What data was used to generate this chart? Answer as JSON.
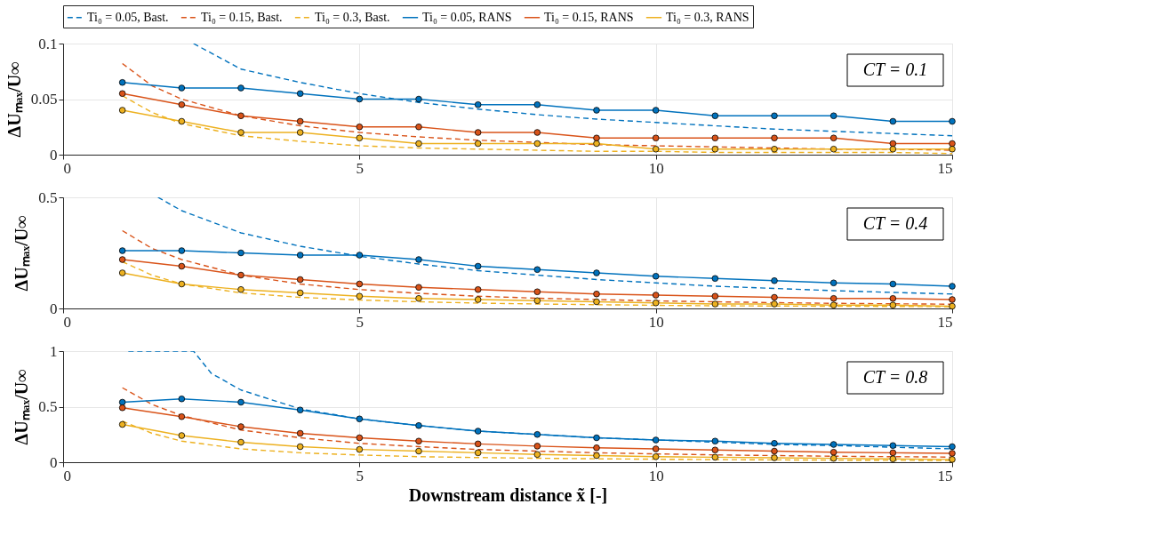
{
  "chart_data": [
    {
      "type": "line",
      "ylabel": "ΔUₘₐₓ/U∞",
      "xlim": [
        0,
        15
      ],
      "xticks": [
        0,
        5,
        10,
        15
      ],
      "ylim": [
        0,
        0.1
      ],
      "yticks": [
        0,
        0.05,
        0.1
      ],
      "grid": true,
      "legend": "top",
      "annotations": [
        "CT = 0.1"
      ],
      "series": [
        {
          "name": "Ti₀ = 0.05, Bast.",
          "color": "#0072bd",
          "line_style": "dashed",
          "marker": "none",
          "x": [
            2.2,
            3,
            4,
            5,
            6,
            7,
            8,
            9,
            10,
            11,
            12,
            13,
            14,
            15
          ],
          "values": [
            0.1,
            0.077,
            0.065,
            0.055,
            0.047,
            0.041,
            0.036,
            0.032,
            0.029,
            0.026,
            0.023,
            0.021,
            0.019,
            0.017
          ]
        },
        {
          "name": "Ti₀ = 0.15, Bast.",
          "color": "#d95319",
          "line_style": "dashed",
          "marker": "none",
          "x": [
            1,
            1.5,
            2,
            3,
            4,
            5,
            6,
            7,
            8,
            9,
            10,
            11,
            12,
            13,
            14,
            15
          ],
          "values": [
            0.082,
            0.062,
            0.05,
            0.035,
            0.026,
            0.02,
            0.016,
            0.013,
            0.011,
            0.009,
            0.008,
            0.007,
            0.006,
            0.005,
            0.005,
            0.004
          ]
        },
        {
          "name": "Ti₀ = 0.3, Bast.",
          "color": "#edb120",
          "line_style": "dashed",
          "marker": "none",
          "x": [
            1,
            1.5,
            2,
            3,
            4,
            5,
            6,
            7,
            8,
            9,
            10,
            11,
            12,
            13,
            14,
            15
          ],
          "values": [
            0.053,
            0.038,
            0.028,
            0.017,
            0.012,
            0.008,
            0.006,
            0.005,
            0.004,
            0.003,
            0.003,
            0.002,
            0.002,
            0.002,
            0.002,
            0.001
          ]
        },
        {
          "name": "Ti₀ = 0.05, RANS",
          "color": "#0072bd",
          "line_style": "solid",
          "marker": "circle",
          "x": [
            1,
            2,
            3,
            4,
            5,
            6,
            7,
            8,
            9,
            10,
            11,
            12,
            13,
            14,
            15
          ],
          "values": [
            0.065,
            0.06,
            0.06,
            0.055,
            0.05,
            0.05,
            0.045,
            0.045,
            0.04,
            0.04,
            0.035,
            0.035,
            0.035,
            0.03,
            0.03
          ]
        },
        {
          "name": "Ti₀ = 0.15, RANS",
          "color": "#d95319",
          "line_style": "solid",
          "marker": "circle",
          "x": [
            1,
            2,
            3,
            4,
            5,
            6,
            7,
            8,
            9,
            10,
            11,
            12,
            13,
            14,
            15
          ],
          "values": [
            0.055,
            0.045,
            0.035,
            0.03,
            0.025,
            0.025,
            0.02,
            0.02,
            0.015,
            0.015,
            0.015,
            0.015,
            0.015,
            0.01,
            0.01
          ]
        },
        {
          "name": "Ti₀ = 0.3, RANS",
          "color": "#edb120",
          "line_style": "solid",
          "marker": "circle",
          "x": [
            1,
            2,
            3,
            4,
            5,
            6,
            7,
            8,
            9,
            10,
            11,
            12,
            13,
            14,
            15
          ],
          "values": [
            0.04,
            0.03,
            0.02,
            0.02,
            0.015,
            0.01,
            0.01,
            0.01,
            0.01,
            0.005,
            0.005,
            0.005,
            0.005,
            0.005,
            0.005
          ]
        }
      ]
    },
    {
      "type": "line",
      "ylabel": "ΔUₘₐₓ/U∞",
      "xlim": [
        0,
        15
      ],
      "xticks": [
        0,
        5,
        10,
        15
      ],
      "ylim": [
        0,
        0.5
      ],
      "yticks": [
        0,
        0.5
      ],
      "grid": true,
      "annotations": [
        "CT = 0.4"
      ],
      "series": [
        {
          "color": "#0072bd",
          "line_style": "dashed",
          "marker": "none",
          "x": [
            1.6,
            2,
            3,
            4,
            5,
            6,
            7,
            8,
            9,
            10,
            11,
            12,
            13,
            14,
            15
          ],
          "values": [
            0.5,
            0.44,
            0.34,
            0.28,
            0.235,
            0.2,
            0.17,
            0.15,
            0.13,
            0.115,
            0.1,
            0.09,
            0.08,
            0.072,
            0.065
          ]
        },
        {
          "color": "#d95319",
          "line_style": "dashed",
          "marker": "none",
          "x": [
            1,
            1.5,
            2,
            3,
            4,
            5,
            6,
            7,
            8,
            9,
            10,
            11,
            12,
            13,
            14,
            15
          ],
          "values": [
            0.35,
            0.27,
            0.22,
            0.15,
            0.11,
            0.085,
            0.068,
            0.055,
            0.046,
            0.04,
            0.034,
            0.03,
            0.026,
            0.023,
            0.021,
            0.019
          ]
        },
        {
          "color": "#edb120",
          "line_style": "dashed",
          "marker": "none",
          "x": [
            1,
            1.5,
            2,
            3,
            4,
            5,
            6,
            7,
            8,
            9,
            10,
            11,
            12,
            13,
            14,
            15
          ],
          "values": [
            0.21,
            0.15,
            0.11,
            0.07,
            0.05,
            0.038,
            0.03,
            0.024,
            0.02,
            0.017,
            0.014,
            0.012,
            0.011,
            0.01,
            0.009,
            0.008
          ]
        },
        {
          "color": "#0072bd",
          "line_style": "solid",
          "marker": "circle",
          "x": [
            1,
            2,
            3,
            4,
            5,
            6,
            7,
            8,
            9,
            10,
            11,
            12,
            13,
            14,
            15
          ],
          "values": [
            0.26,
            0.26,
            0.25,
            0.24,
            0.24,
            0.22,
            0.19,
            0.175,
            0.16,
            0.145,
            0.135,
            0.125,
            0.115,
            0.11,
            0.1
          ]
        },
        {
          "color": "#d95319",
          "line_style": "solid",
          "marker": "circle",
          "x": [
            1,
            2,
            3,
            4,
            5,
            6,
            7,
            8,
            9,
            10,
            11,
            12,
            13,
            14,
            15
          ],
          "values": [
            0.22,
            0.19,
            0.15,
            0.13,
            0.11,
            0.095,
            0.085,
            0.075,
            0.065,
            0.06,
            0.055,
            0.05,
            0.045,
            0.045,
            0.04
          ]
        },
        {
          "color": "#edb120",
          "line_style": "solid",
          "marker": "circle",
          "x": [
            1,
            2,
            3,
            4,
            5,
            6,
            7,
            8,
            9,
            10,
            11,
            12,
            13,
            14,
            15
          ],
          "values": [
            0.16,
            0.11,
            0.085,
            0.07,
            0.055,
            0.045,
            0.04,
            0.035,
            0.03,
            0.025,
            0.02,
            0.02,
            0.015,
            0.015,
            0.01
          ]
        }
      ]
    },
    {
      "type": "line",
      "xlabel": "Downstream distance x̃ [-]",
      "ylabel": "ΔUₘₐₓ/U∞",
      "xlim": [
        0,
        15
      ],
      "xticks": [
        0,
        5,
        10,
        15
      ],
      "ylim": [
        0,
        1
      ],
      "yticks": [
        0,
        0.5,
        1
      ],
      "grid": true,
      "annotations": [
        "CT = 0.8"
      ],
      "series": [
        {
          "color": "#0072bd",
          "line_style": "dashed",
          "marker": "none",
          "x": [
            1.1,
            2.2,
            2.5,
            3,
            4,
            5,
            6,
            7,
            8,
            9,
            10,
            11,
            12,
            13,
            14,
            15
          ],
          "values": [
            1,
            1,
            0.8,
            0.65,
            0.48,
            0.39,
            0.33,
            0.28,
            0.25,
            0.22,
            0.2,
            0.18,
            0.16,
            0.15,
            0.135,
            0.12
          ]
        },
        {
          "color": "#d95319",
          "line_style": "dashed",
          "marker": "none",
          "x": [
            1,
            1.5,
            2,
            3,
            4,
            5,
            6,
            7,
            8,
            9,
            10,
            11,
            12,
            13,
            14,
            15
          ],
          "values": [
            0.67,
            0.52,
            0.42,
            0.29,
            0.22,
            0.17,
            0.14,
            0.115,
            0.1,
            0.085,
            0.075,
            0.066,
            0.06,
            0.054,
            0.05,
            0.046
          ]
        },
        {
          "color": "#edb120",
          "line_style": "dashed",
          "marker": "none",
          "x": [
            1,
            1.5,
            2,
            3,
            4,
            5,
            6,
            7,
            8,
            9,
            10,
            11,
            12,
            13,
            14,
            15
          ],
          "values": [
            0.37,
            0.26,
            0.19,
            0.12,
            0.085,
            0.065,
            0.05,
            0.042,
            0.036,
            0.031,
            0.027,
            0.024,
            0.021,
            0.019,
            0.017,
            0.016
          ]
        },
        {
          "color": "#0072bd",
          "line_style": "solid",
          "marker": "circle",
          "x": [
            1,
            2,
            3,
            4,
            5,
            6,
            7,
            8,
            9,
            10,
            11,
            12,
            13,
            14,
            15
          ],
          "values": [
            0.54,
            0.57,
            0.54,
            0.47,
            0.39,
            0.33,
            0.28,
            0.25,
            0.22,
            0.2,
            0.19,
            0.17,
            0.16,
            0.15,
            0.14
          ]
        },
        {
          "color": "#d95319",
          "line_style": "solid",
          "marker": "circle",
          "x": [
            1,
            2,
            3,
            4,
            5,
            6,
            7,
            8,
            9,
            10,
            11,
            12,
            13,
            14,
            15
          ],
          "values": [
            0.49,
            0.41,
            0.32,
            0.26,
            0.22,
            0.19,
            0.165,
            0.145,
            0.13,
            0.12,
            0.11,
            0.1,
            0.09,
            0.085,
            0.08
          ]
        },
        {
          "color": "#edb120",
          "line_style": "solid",
          "marker": "circle",
          "x": [
            1,
            2,
            3,
            4,
            5,
            6,
            7,
            8,
            9,
            10,
            11,
            12,
            13,
            14,
            15
          ],
          "values": [
            0.34,
            0.24,
            0.18,
            0.14,
            0.115,
            0.1,
            0.085,
            0.07,
            0.06,
            0.05,
            0.045,
            0.04,
            0.035,
            0.03,
            0.025
          ]
        }
      ]
    }
  ]
}
